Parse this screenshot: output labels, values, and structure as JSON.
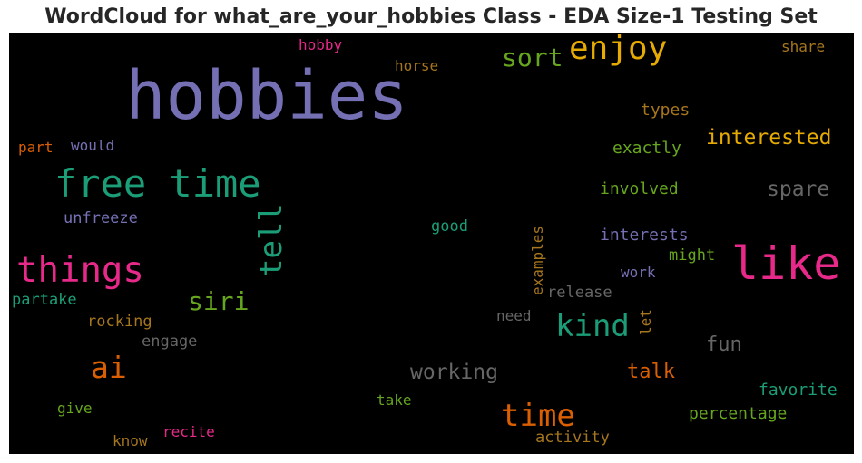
{
  "chart_data": {
    "type": "wordcloud",
    "title": "WordCloud for what_are_your_hobbies Class - EDA Size-1 Testing Set",
    "background": "#000000",
    "palette": [
      "#7570b3",
      "#1b9e77",
      "#e7298a",
      "#66a61e",
      "#e6ab02",
      "#d95f02",
      "#a6761d",
      "#666666"
    ],
    "words": [
      {
        "text": "hobbies",
        "weight": 1.0,
        "color": "#7570b3"
      },
      {
        "text": "like",
        "weight": 0.62,
        "color": "#e7298a"
      },
      {
        "text": "free time",
        "weight": 0.52,
        "color": "#1b9e77"
      },
      {
        "text": "things",
        "weight": 0.48,
        "color": "#e7298a"
      },
      {
        "text": "enjoy",
        "weight": 0.44,
        "color": "#e6ab02"
      },
      {
        "text": "tell",
        "weight": 0.42,
        "color": "#1b9e77",
        "vertical": true
      },
      {
        "text": "time",
        "weight": 0.42,
        "color": "#d95f02"
      },
      {
        "text": "kind",
        "weight": 0.42,
        "color": "#1b9e77"
      },
      {
        "text": "ai",
        "weight": 0.4,
        "color": "#d95f02"
      },
      {
        "text": "sort",
        "weight": 0.34,
        "color": "#66a61e"
      },
      {
        "text": "siri",
        "weight": 0.34,
        "color": "#66a61e"
      },
      {
        "text": "interested",
        "weight": 0.28,
        "color": "#e6ab02"
      },
      {
        "text": "spare",
        "weight": 0.28,
        "color": "#666666"
      },
      {
        "text": "working",
        "weight": 0.28,
        "color": "#666666"
      },
      {
        "text": "talk",
        "weight": 0.26,
        "color": "#d95f02"
      },
      {
        "text": "fun",
        "weight": 0.26,
        "color": "#666666"
      },
      {
        "text": "interests",
        "weight": 0.22,
        "color": "#7570b3"
      },
      {
        "text": "involved",
        "weight": 0.21,
        "color": "#66a61e"
      },
      {
        "text": "types",
        "weight": 0.21,
        "color": "#a6761d"
      },
      {
        "text": "exactly",
        "weight": 0.21,
        "color": "#66a61e"
      },
      {
        "text": "favorite",
        "weight": 0.21,
        "color": "#1b9e77"
      },
      {
        "text": "percentage",
        "weight": 0.21,
        "color": "#66a61e"
      },
      {
        "text": "activity",
        "weight": 0.2,
        "color": "#a6761d"
      },
      {
        "text": "release",
        "weight": 0.2,
        "color": "#666666"
      },
      {
        "text": "examples",
        "weight": 0.19,
        "color": "#a6761d",
        "vertical": true
      },
      {
        "text": "good",
        "weight": 0.2,
        "color": "#1b9e77"
      },
      {
        "text": "unfreeze",
        "weight": 0.2,
        "color": "#7570b3"
      },
      {
        "text": "rocking",
        "weight": 0.2,
        "color": "#a6761d"
      },
      {
        "text": "engage",
        "weight": 0.2,
        "color": "#666666"
      },
      {
        "text": "partake",
        "weight": 0.2,
        "color": "#1b9e77"
      },
      {
        "text": "would",
        "weight": 0.19,
        "color": "#7570b3"
      },
      {
        "text": "part",
        "weight": 0.19,
        "color": "#d95f02"
      },
      {
        "text": "horse",
        "weight": 0.19,
        "color": "#a6761d"
      },
      {
        "text": "hobby",
        "weight": 0.19,
        "color": "#e7298a"
      },
      {
        "text": "share",
        "weight": 0.19,
        "color": "#a6761d"
      },
      {
        "text": "might",
        "weight": 0.2,
        "color": "#66a61e"
      },
      {
        "text": "work",
        "weight": 0.19,
        "color": "#7570b3"
      },
      {
        "text": "need",
        "weight": 0.19,
        "color": "#666666"
      },
      {
        "text": "let",
        "weight": 0.19,
        "color": "#a6761d",
        "vertical": true
      },
      {
        "text": "take",
        "weight": 0.19,
        "color": "#66a61e"
      },
      {
        "text": "give",
        "weight": 0.19,
        "color": "#66a61e"
      },
      {
        "text": "recite",
        "weight": 0.19,
        "color": "#e7298a"
      },
      {
        "text": "know",
        "weight": 0.19,
        "color": "#a6761d"
      }
    ]
  }
}
